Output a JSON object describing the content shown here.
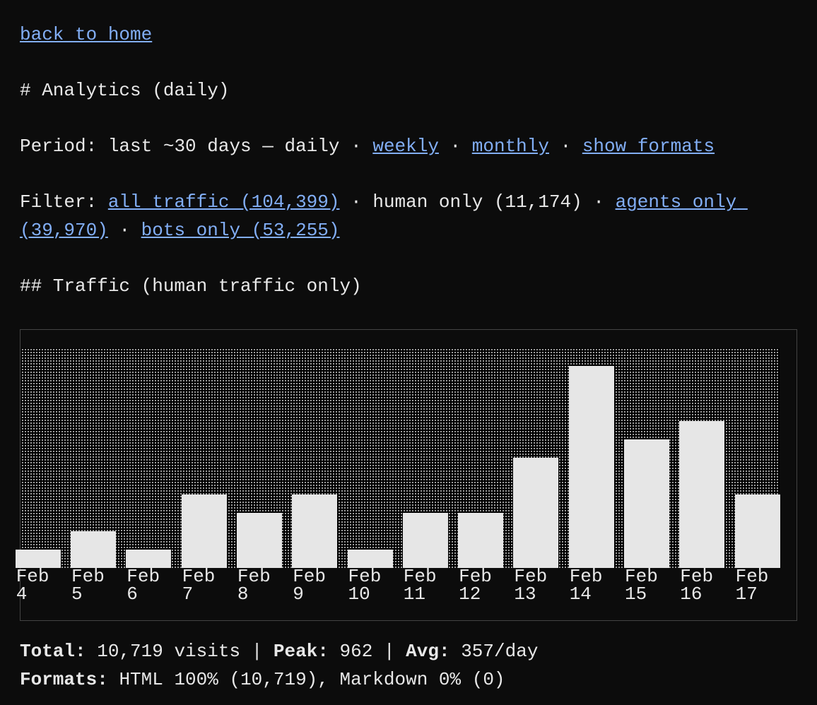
{
  "nav": {
    "back": "back to home"
  },
  "heading": "# Analytics (daily)",
  "separator": "·",
  "period": {
    "label": "Period:",
    "current": "last ~30 days — daily",
    "links": [
      "weekly",
      "monthly",
      "show formats"
    ]
  },
  "filter": {
    "label": "Filter:",
    "items": [
      {
        "text": "all traffic (104,399)",
        "link": true
      },
      {
        "text": "human only (11,174)",
        "link": false
      },
      {
        "text": "agents only (39,970)",
        "link": true
      },
      {
        "text": "bots only (53,255)",
        "link": true
      }
    ]
  },
  "section": "## Traffic (human traffic only)",
  "chart_data": {
    "type": "bar",
    "color": "#e6e6e6",
    "categories": [
      "Feb 4",
      "Feb 5",
      "Feb 6",
      "Feb 7",
      "Feb 8",
      "Feb 9",
      "Feb 10",
      "Feb 11",
      "Feb 12",
      "Feb 13",
      "Feb 14",
      "Feb 15",
      "Feb 16",
      "Feb 17"
    ],
    "values": [
      87,
      175,
      87,
      350,
      262,
      350,
      87,
      262,
      262,
      525,
      962,
      612,
      700,
      350
    ],
    "ylim": [
      0,
      1046
    ]
  },
  "stats": {
    "separator": "|",
    "items": [
      {
        "label": "Total:",
        "value": "10,719 visits"
      },
      {
        "label": "Peak:",
        "value": "962"
      },
      {
        "label": "Avg:",
        "value": "357/day"
      }
    ]
  },
  "formats": {
    "label": "Formats:",
    "value": "HTML 100% (10,719), Markdown 0% (0)"
  }
}
